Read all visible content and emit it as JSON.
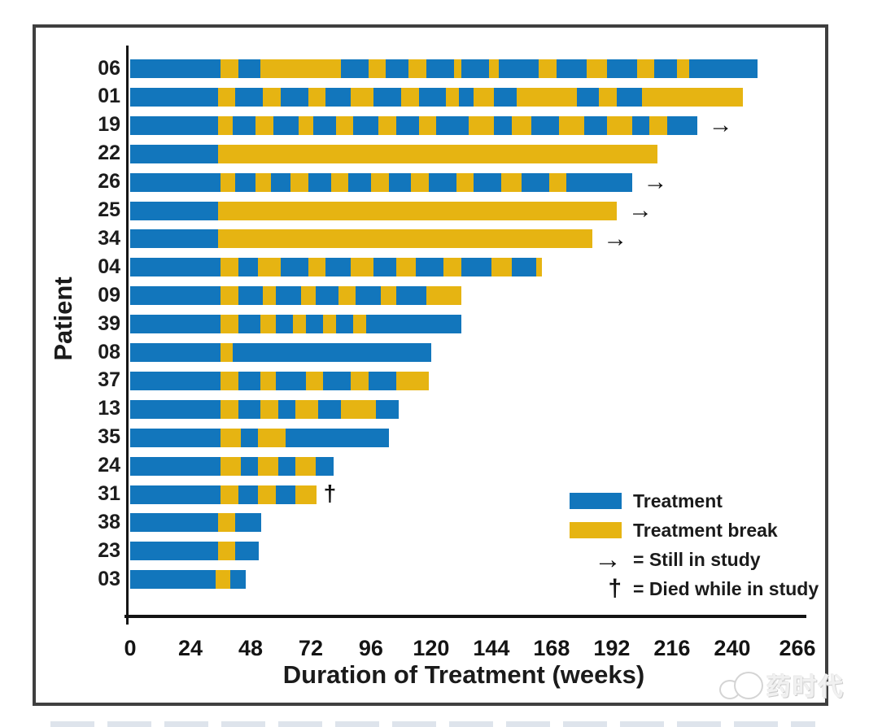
{
  "chart_data": {
    "type": "bar",
    "subtype": "swimmer-plot",
    "orientation": "horizontal",
    "title": "",
    "xlabel": "Duration of Treatment (weeks)",
    "ylabel": "Patient",
    "xlim": [
      0,
      266
    ],
    "xticks": [
      0,
      24,
      48,
      72,
      96,
      120,
      144,
      168,
      192,
      216,
      240,
      266
    ],
    "grid": false,
    "colors": {
      "t": "#1276bc",
      "b": "#e6b412"
    },
    "legend": {
      "position": "lower right",
      "items": [
        {
          "key": "treatment",
          "label": "Treatment"
        },
        {
          "key": "treatment_break",
          "label": "Treatment break"
        },
        {
          "key": "still_in_study",
          "symbol": "→",
          "label": "= Still in study"
        },
        {
          "key": "died_in_study",
          "symbol": "†",
          "label": "= Died while in study"
        }
      ]
    },
    "patients": [
      {
        "id": "06",
        "end": 250,
        "still_in_study": false,
        "segments": [
          [
            "t",
            0,
            36
          ],
          [
            "b",
            36,
            43
          ],
          [
            "t",
            43,
            52
          ],
          [
            "b",
            52,
            84
          ],
          [
            "t",
            84,
            95
          ],
          [
            "b",
            95,
            102
          ],
          [
            "t",
            102,
            111
          ],
          [
            "b",
            111,
            118
          ],
          [
            "t",
            118,
            129
          ],
          [
            "b",
            129,
            132
          ],
          [
            "t",
            132,
            143
          ],
          [
            "b",
            143,
            147
          ],
          [
            "t",
            147,
            163
          ],
          [
            "b",
            163,
            170
          ],
          [
            "t",
            170,
            182
          ],
          [
            "b",
            182,
            190
          ],
          [
            "t",
            190,
            202
          ],
          [
            "b",
            202,
            209
          ],
          [
            "t",
            209,
            218
          ],
          [
            "b",
            218,
            223
          ],
          [
            "t",
            223,
            250
          ]
        ]
      },
      {
        "id": "01",
        "end": 244,
        "still_in_study": false,
        "segments": [
          [
            "t",
            0,
            35
          ],
          [
            "b",
            35,
            42
          ],
          [
            "t",
            42,
            53
          ],
          [
            "b",
            53,
            60
          ],
          [
            "t",
            60,
            71
          ],
          [
            "b",
            71,
            78
          ],
          [
            "t",
            78,
            88
          ],
          [
            "b",
            88,
            97
          ],
          [
            "t",
            97,
            108
          ],
          [
            "b",
            108,
            115
          ],
          [
            "t",
            115,
            126
          ],
          [
            "b",
            126,
            131
          ],
          [
            "t",
            131,
            137
          ],
          [
            "b",
            137,
            145
          ],
          [
            "t",
            145,
            154
          ],
          [
            "b",
            154,
            178
          ],
          [
            "t",
            178,
            187
          ],
          [
            "b",
            187,
            194
          ],
          [
            "t",
            194,
            204
          ],
          [
            "b",
            204,
            244
          ]
        ]
      },
      {
        "id": "19",
        "end": 226,
        "still_in_study": true,
        "segments": [
          [
            "t",
            0,
            35
          ],
          [
            "b",
            35,
            41
          ],
          [
            "t",
            41,
            50
          ],
          [
            "b",
            50,
            57
          ],
          [
            "t",
            57,
            67
          ],
          [
            "b",
            67,
            73
          ],
          [
            "t",
            73,
            82
          ],
          [
            "b",
            82,
            89
          ],
          [
            "t",
            89,
            99
          ],
          [
            "b",
            99,
            106
          ],
          [
            "t",
            106,
            115
          ],
          [
            "b",
            115,
            122
          ],
          [
            "t",
            122,
            135
          ],
          [
            "b",
            135,
            145
          ],
          [
            "t",
            145,
            152
          ],
          [
            "b",
            152,
            160
          ],
          [
            "t",
            160,
            171
          ],
          [
            "b",
            171,
            181
          ],
          [
            "t",
            181,
            190
          ],
          [
            "b",
            190,
            200
          ],
          [
            "t",
            200,
            207
          ],
          [
            "b",
            207,
            214
          ],
          [
            "t",
            214,
            226
          ]
        ]
      },
      {
        "id": "22",
        "end": 210,
        "still_in_study": false,
        "segments": [
          [
            "t",
            0,
            35
          ],
          [
            "b",
            35,
            210
          ]
        ]
      },
      {
        "id": "26",
        "end": 200,
        "still_in_study": true,
        "segments": [
          [
            "t",
            0,
            36
          ],
          [
            "b",
            36,
            42
          ],
          [
            "t",
            42,
            50
          ],
          [
            "b",
            50,
            56
          ],
          [
            "t",
            56,
            64
          ],
          [
            "b",
            64,
            71
          ],
          [
            "t",
            71,
            80
          ],
          [
            "b",
            80,
            87
          ],
          [
            "t",
            87,
            96
          ],
          [
            "b",
            96,
            103
          ],
          [
            "t",
            103,
            112
          ],
          [
            "b",
            112,
            119
          ],
          [
            "t",
            119,
            130
          ],
          [
            "b",
            130,
            137
          ],
          [
            "t",
            137,
            148
          ],
          [
            "b",
            148,
            156
          ],
          [
            "t",
            156,
            167
          ],
          [
            "b",
            167,
            174
          ],
          [
            "t",
            174,
            200
          ]
        ]
      },
      {
        "id": "25",
        "end": 194,
        "still_in_study": true,
        "segments": [
          [
            "t",
            0,
            35
          ],
          [
            "b",
            35,
            194
          ]
        ]
      },
      {
        "id": "34",
        "end": 184,
        "still_in_study": true,
        "segments": [
          [
            "t",
            0,
            35
          ],
          [
            "b",
            35,
            184
          ]
        ]
      },
      {
        "id": "04",
        "end": 164,
        "still_in_study": false,
        "segments": [
          [
            "t",
            0,
            36
          ],
          [
            "b",
            36,
            43
          ],
          [
            "t",
            43,
            51
          ],
          [
            "b",
            51,
            60
          ],
          [
            "t",
            60,
            71
          ],
          [
            "b",
            71,
            78
          ],
          [
            "t",
            78,
            88
          ],
          [
            "b",
            88,
            97
          ],
          [
            "t",
            97,
            106
          ],
          [
            "b",
            106,
            114
          ],
          [
            "t",
            114,
            125
          ],
          [
            "b",
            125,
            132
          ],
          [
            "t",
            132,
            144
          ],
          [
            "b",
            144,
            152
          ],
          [
            "t",
            152,
            162
          ],
          [
            "b",
            162,
            164
          ]
        ]
      },
      {
        "id": "09",
        "end": 132,
        "still_in_study": false,
        "segments": [
          [
            "t",
            0,
            36
          ],
          [
            "b",
            36,
            43
          ],
          [
            "t",
            43,
            53
          ],
          [
            "b",
            53,
            58
          ],
          [
            "t",
            58,
            68
          ],
          [
            "b",
            68,
            74
          ],
          [
            "t",
            74,
            83
          ],
          [
            "b",
            83,
            90
          ],
          [
            "t",
            90,
            100
          ],
          [
            "b",
            100,
            106
          ],
          [
            "t",
            106,
            118
          ],
          [
            "b",
            118,
            132
          ]
        ]
      },
      {
        "id": "39",
        "end": 132,
        "still_in_study": false,
        "segments": [
          [
            "t",
            0,
            36
          ],
          [
            "b",
            36,
            43
          ],
          [
            "t",
            43,
            52
          ],
          [
            "b",
            52,
            58
          ],
          [
            "t",
            58,
            65
          ],
          [
            "b",
            65,
            70
          ],
          [
            "t",
            70,
            77
          ],
          [
            "b",
            77,
            82
          ],
          [
            "t",
            82,
            89
          ],
          [
            "b",
            89,
            94
          ],
          [
            "t",
            94,
            132
          ]
        ]
      },
      {
        "id": "08",
        "end": 120,
        "still_in_study": false,
        "segments": [
          [
            "t",
            0,
            36
          ],
          [
            "b",
            36,
            41
          ],
          [
            "t",
            41,
            120
          ]
        ]
      },
      {
        "id": "37",
        "end": 119,
        "still_in_study": false,
        "segments": [
          [
            "t",
            0,
            36
          ],
          [
            "b",
            36,
            43
          ],
          [
            "t",
            43,
            52
          ],
          [
            "b",
            52,
            58
          ],
          [
            "t",
            58,
            70
          ],
          [
            "b",
            70,
            77
          ],
          [
            "t",
            77,
            88
          ],
          [
            "b",
            88,
            95
          ],
          [
            "t",
            95,
            106
          ],
          [
            "b",
            106,
            119
          ]
        ]
      },
      {
        "id": "13",
        "end": 107,
        "still_in_study": false,
        "segments": [
          [
            "t",
            0,
            36
          ],
          [
            "b",
            36,
            43
          ],
          [
            "t",
            43,
            52
          ],
          [
            "b",
            52,
            59
          ],
          [
            "t",
            59,
            66
          ],
          [
            "b",
            66,
            75
          ],
          [
            "t",
            75,
            84
          ],
          [
            "b",
            84,
            98
          ],
          [
            "t",
            98,
            107
          ]
        ]
      },
      {
        "id": "35",
        "end": 103,
        "still_in_study": false,
        "segments": [
          [
            "t",
            0,
            36
          ],
          [
            "b",
            36,
            44
          ],
          [
            "t",
            44,
            51
          ],
          [
            "b",
            51,
            62
          ],
          [
            "t",
            62,
            103
          ]
        ]
      },
      {
        "id": "24",
        "end": 81,
        "still_in_study": false,
        "segments": [
          [
            "t",
            0,
            36
          ],
          [
            "b",
            36,
            44
          ],
          [
            "t",
            44,
            51
          ],
          [
            "b",
            51,
            59
          ],
          [
            "t",
            59,
            66
          ],
          [
            "b",
            66,
            74
          ],
          [
            "t",
            74,
            81
          ]
        ]
      },
      {
        "id": "31",
        "end": 74,
        "still_in_study": false,
        "died_week": 80,
        "segments": [
          [
            "t",
            0,
            36
          ],
          [
            "b",
            36,
            43
          ],
          [
            "t",
            43,
            51
          ],
          [
            "b",
            51,
            58
          ],
          [
            "t",
            58,
            66
          ],
          [
            "b",
            66,
            74
          ]
        ]
      },
      {
        "id": "38",
        "end": 52,
        "still_in_study": false,
        "segments": [
          [
            "t",
            0,
            35
          ],
          [
            "b",
            35,
            42
          ],
          [
            "t",
            42,
            52
          ]
        ]
      },
      {
        "id": "23",
        "end": 51,
        "still_in_study": false,
        "segments": [
          [
            "t",
            0,
            35
          ],
          [
            "b",
            35,
            42
          ],
          [
            "t",
            42,
            51
          ]
        ]
      },
      {
        "id": "03",
        "end": 46,
        "still_in_study": false,
        "segments": [
          [
            "t",
            0,
            34
          ],
          [
            "b",
            34,
            40
          ],
          [
            "t",
            40,
            46
          ]
        ]
      }
    ]
  },
  "watermark": {
    "text": "药时代"
  }
}
